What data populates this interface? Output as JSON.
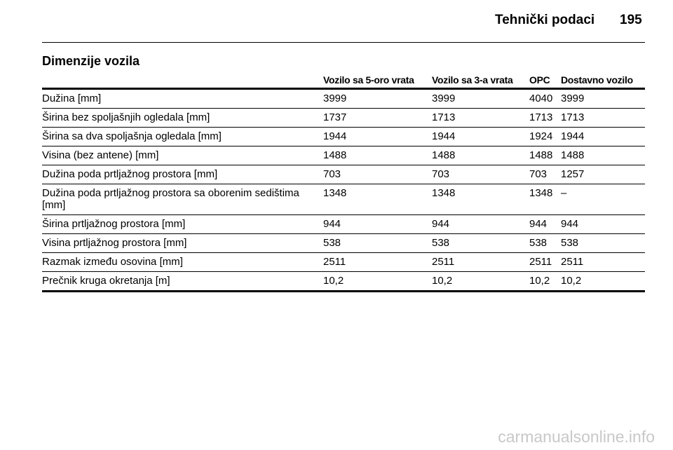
{
  "header": {
    "title": "Tehnički podaci",
    "page": "195"
  },
  "section": {
    "title": "Dimenzije vozila"
  },
  "table": {
    "columns": [
      "",
      "Vozilo sa 5-oro vrata",
      "Vozilo sa 3-a vrata",
      "OPC",
      "Dostavno vozilo"
    ],
    "rows": [
      [
        "Dužina [mm]",
        "3999",
        "3999",
        "4040",
        "3999"
      ],
      [
        "Širina bez spoljašnjih ogledala [mm]",
        "1737",
        "1713",
        "1713",
        "1713"
      ],
      [
        "Širina sa dva spoljašnja ogledala [mm]",
        "1944",
        "1944",
        "1924",
        "1944"
      ],
      [
        "Visina (bez antene) [mm]",
        "1488",
        "1488",
        "1488",
        "1488"
      ],
      [
        "Dužina poda prtljažnog prostora [mm]",
        "703",
        "703",
        "703",
        "1257"
      ],
      [
        "Dužina poda prtljažnog prostora sa oborenim sedištima [mm]",
        "1348",
        "1348",
        "1348",
        "–"
      ],
      [
        "Širina prtljažnog prostora [mm]",
        "944",
        "944",
        "944",
        "944"
      ],
      [
        "Visina prtljažnog prostora [mm]",
        "538",
        "538",
        "538",
        "538"
      ],
      [
        "Razmak između osovina [mm]",
        "2511",
        "2511",
        "2511",
        "2511"
      ],
      [
        "Prečnik kruga okretanja [m]",
        "10,2",
        "10,2",
        "10,2",
        "10,2"
      ]
    ]
  },
  "watermark": "carmanualsonline.info"
}
